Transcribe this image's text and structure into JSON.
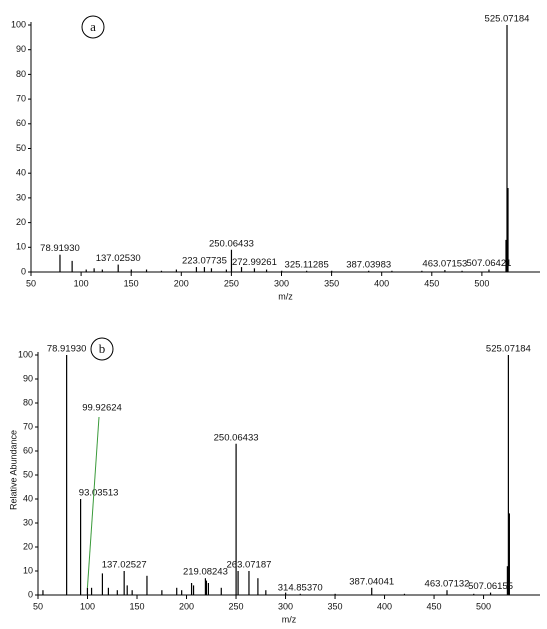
{
  "chart_data": [
    {
      "type": "stick",
      "panel": "a",
      "xlabel": "m/z",
      "color": "#000000",
      "x": [
        78.9193,
        91.05,
        105.1,
        113.0,
        121.2,
        137.0253,
        150.1,
        165.3,
        180.2,
        195.1,
        215.1,
        223.07735,
        230.1,
        245.0,
        250.06433,
        260.1,
        272.99261,
        285.1,
        300.2,
        325.11285,
        350.1,
        387.03983,
        410.2,
        440.1,
        463.07153,
        480.2,
        507.06421,
        524.07,
        525.07184,
        526.07
      ],
      "values": [
        7,
        4.5,
        1,
        1.5,
        1,
        3,
        1,
        1,
        0.5,
        1,
        2,
        2,
        1.5,
        1,
        9,
        2,
        1.5,
        1,
        0.5,
        0.5,
        0.5,
        0.5,
        0.5,
        0.5,
        0.8,
        0.5,
        1,
        13,
        100,
        34
      ],
      "xlim": [
        50,
        558
      ],
      "xticks": [
        50,
        100,
        150,
        200,
        250,
        300,
        350,
        400,
        450,
        500
      ],
      "ylim": [
        0,
        100
      ],
      "yticks": [
        0,
        10,
        20,
        30,
        40,
        50,
        60,
        70,
        80,
        90,
        100
      ],
      "annotations": [
        {
          "value": 78.9193,
          "label": "78.91930"
        },
        {
          "value": 137.0253,
          "label": "137.02530"
        },
        {
          "value": 223.07735,
          "label": "223.07735"
        },
        {
          "value": 250.06433,
          "label": "250.06433"
        },
        {
          "value": 272.99261,
          "label": "272.99261"
        },
        {
          "value": 325.11285,
          "label": "325.11285"
        },
        {
          "value": 387.03983,
          "label": "387.03983"
        },
        {
          "value": 463.07153,
          "label": "463.07153"
        },
        {
          "value": 507.06421,
          "label": "507.06421"
        },
        {
          "value": 525.07184,
          "label": "525.07184"
        }
      ]
    },
    {
      "type": "stick",
      "panel": "b",
      "xlabel": "m/z",
      "ylabel": "Relative Abundance",
      "color": "#000000",
      "x": [
        55.0,
        78.9193,
        93.03513,
        99.92624,
        104.1,
        115.05,
        121.1,
        130.1,
        137.02527,
        140.1,
        145.1,
        160.05,
        175.1,
        190.1,
        195.1,
        205.1,
        207.1,
        219.08243,
        220.1,
        222.1,
        235.1,
        250.06433,
        252.07,
        263.07187,
        272.1,
        280.1,
        300.1,
        314.8537,
        350.1,
        387.04041,
        420.1,
        463.07132,
        490.1,
        507.06155,
        524.07,
        525.07184,
        526.07
      ],
      "values": [
        2,
        100,
        40,
        3,
        3,
        9,
        3,
        2,
        10,
        4,
        2,
        8,
        2,
        3,
        2,
        5,
        4,
        7,
        6,
        5,
        3,
        63,
        10,
        10,
        7,
        2,
        1,
        0.5,
        0.5,
        3,
        0.5,
        2,
        0.5,
        1,
        12,
        100,
        34
      ],
      "xlim": [
        50,
        557
      ],
      "xticks": [
        50,
        100,
        150,
        200,
        250,
        300,
        350,
        400,
        450,
        500
      ],
      "ylim": [
        0,
        100
      ],
      "yticks": [
        0,
        10,
        20,
        30,
        40,
        50,
        60,
        70,
        80,
        90,
        100
      ],
      "annotations": [
        {
          "value": 78.9193,
          "label": "78.91930"
        },
        {
          "value": 93.03513,
          "label": "93.03513"
        },
        {
          "value": 99.92624,
          "label": "99.92624"
        },
        {
          "value": 137.02527,
          "label": "137.02527"
        },
        {
          "value": 219.08243,
          "label": "219.08243"
        },
        {
          "value": 250.06433,
          "label": "250.06433"
        },
        {
          "value": 263.07187,
          "label": "263.07187"
        },
        {
          "value": 314.8537,
          "label": "314.85370"
        },
        {
          "value": 387.04041,
          "label": "387.04041"
        },
        {
          "value": 463.07132,
          "label": "463.07132"
        },
        {
          "value": 507.06155,
          "label": "507.06155"
        },
        {
          "value": 525.07184,
          "label": "525.07184"
        }
      ]
    }
  ]
}
